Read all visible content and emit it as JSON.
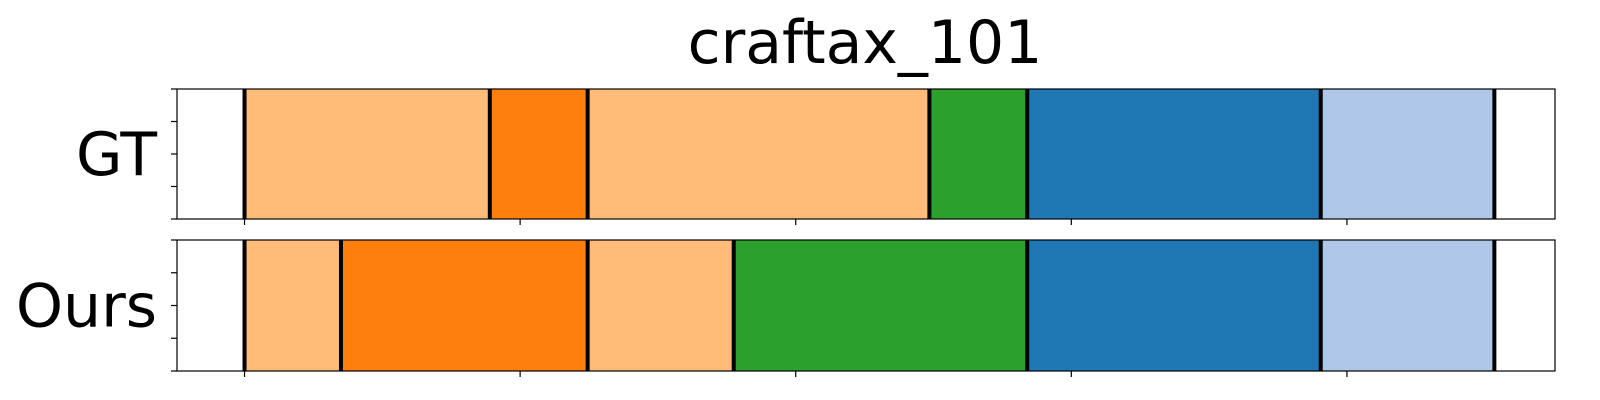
{
  "chart_data": {
    "type": "segmentation",
    "title": "craftax_101",
    "x_range": [
      0,
      100
    ],
    "rows": [
      {
        "label": "GT",
        "segments": [
          {
            "start": 4.9,
            "end": 22.7,
            "color": "#ffbb78"
          },
          {
            "start": 22.7,
            "end": 29.8,
            "color": "#ff7f0e"
          },
          {
            "start": 29.8,
            "end": 54.6,
            "color": "#ffbb78"
          },
          {
            "start": 54.6,
            "end": 61.7,
            "color": "#2ca02c"
          },
          {
            "start": 61.7,
            "end": 83.0,
            "color": "#1f77b4"
          },
          {
            "start": 83.0,
            "end": 95.6,
            "color": "#aec7e8"
          },
          {
            "start": 95.6,
            "end": 95.6,
            "color": "#aec7e8"
          }
        ],
        "boundaries": [
          4.9,
          22.7,
          29.8,
          54.6,
          61.7,
          83.0,
          95.6
        ]
      },
      {
        "label": "Ours",
        "segments": [
          {
            "start": 4.9,
            "end": 11.9,
            "color": "#ffbb78"
          },
          {
            "start": 11.9,
            "end": 29.8,
            "color": "#ff7f0e"
          },
          {
            "start": 29.8,
            "end": 40.4,
            "color": "#ffbb78"
          },
          {
            "start": 40.4,
            "end": 61.7,
            "color": "#2ca02c"
          },
          {
            "start": 61.7,
            "end": 83.0,
            "color": "#1f77b4"
          },
          {
            "start": 83.0,
            "end": 95.6,
            "color": "#aec7e8"
          }
        ],
        "boundaries": [
          4.9,
          11.9,
          29.8,
          40.4,
          61.7,
          83.0,
          95.6
        ]
      }
    ],
    "xticks": [
      4.9,
      24.9,
      44.9,
      64.9,
      84.9,
      104.9
    ],
    "legend": "none",
    "grid": false
  }
}
